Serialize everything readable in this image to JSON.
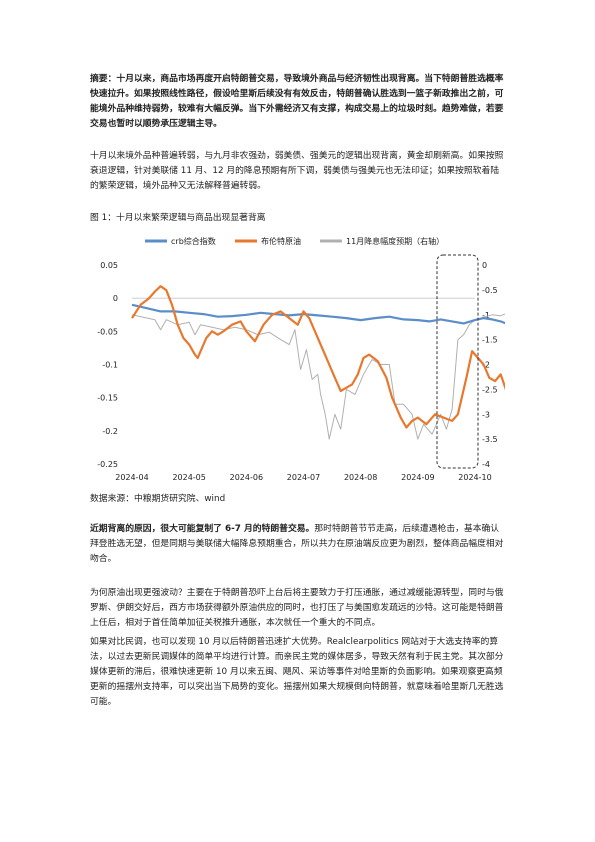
{
  "abstract": "摘要：十月以来，商品市场再度开启特朗普交易，导致境外商品与经济韧性出现背离。当下特朗普胜选概率快速拉升。如果按照线性路径，假设哈里斯后续没有有效反击，特朗普确认胜选到一篮子新政推出之前，可能境外品种维持弱势，较难有大幅反弹。当下外需经济又有支撑，构成交易上的垃圾时刻。趋势难做，若要交易也暂时以顺势承压逻辑主导。",
  "para1": "十月以来境外品种普遍转弱，与九月非农强劲，弱美债、强美元的逻辑出现背离，黄金却刷新高。如果按照衰退逻辑，针对美联储 11 月、12 月的降息预期有所下调，弱美债与强美元也无法印证；如果按照软着陆的繁荣逻辑，境外品种又无法解释普遍转弱。",
  "figure_title": "图 1：十月以来繁荣逻辑与商品出现显著背离",
  "chart_data": {
    "type": "line",
    "title": "",
    "legend_position": "top",
    "x_ticks": [
      "2024-04",
      "2024-05",
      "2024-06",
      "2024-07",
      "2024-08",
      "2024-09",
      "2024-10"
    ],
    "y_left_ticks": [
      "0.05",
      "0",
      "-0.05",
      "-0.1",
      "-0.15",
      "-0.2",
      "-0.25"
    ],
    "y_left_lim": [
      -0.25,
      0.05
    ],
    "y_right_ticks": [
      "0",
      "-0.5",
      "-1",
      "-1.5",
      "-2",
      "-2.5",
      "-3",
      "-3.5",
      "-4"
    ],
    "y_right_lim": [
      -4,
      0
    ],
    "series": [
      {
        "name": "crb综合指数",
        "axis": "left",
        "color": "#5b8ec9",
        "points": [
          [
            0.0,
            -0.01
          ],
          [
            0.25,
            -0.015
          ],
          [
            0.5,
            -0.02
          ],
          [
            0.75,
            -0.02
          ],
          [
            1.0,
            -0.022
          ],
          [
            1.25,
            -0.024
          ],
          [
            1.5,
            -0.028
          ],
          [
            1.75,
            -0.027
          ],
          [
            2.0,
            -0.025
          ],
          [
            2.25,
            -0.022
          ],
          [
            2.5,
            -0.024
          ],
          [
            2.75,
            -0.026
          ],
          [
            3.0,
            -0.024
          ],
          [
            3.25,
            -0.026
          ],
          [
            3.5,
            -0.028
          ],
          [
            3.75,
            -0.03
          ],
          [
            4.0,
            -0.033
          ],
          [
            4.25,
            -0.03
          ],
          [
            4.5,
            -0.028
          ],
          [
            4.75,
            -0.032
          ],
          [
            5.0,
            -0.033
          ],
          [
            5.2,
            -0.035
          ],
          [
            5.4,
            -0.032
          ],
          [
            5.6,
            -0.035
          ],
          [
            5.8,
            -0.038
          ],
          [
            6.0,
            -0.033
          ],
          [
            6.15,
            -0.03
          ],
          [
            6.3,
            -0.032
          ],
          [
            6.45,
            -0.035
          ],
          [
            6.6,
            -0.04
          ]
        ]
      },
      {
        "name": "布伦特原油",
        "axis": "left",
        "color": "#e8782d",
        "points": [
          [
            0.0,
            -0.03
          ],
          [
            0.15,
            -0.01
          ],
          [
            0.3,
            0.0
          ],
          [
            0.4,
            0.01
          ],
          [
            0.5,
            0.018
          ],
          [
            0.6,
            0.012
          ],
          [
            0.7,
            -0.01
          ],
          [
            0.8,
            -0.04
          ],
          [
            0.9,
            -0.06
          ],
          [
            1.0,
            -0.07
          ],
          [
            1.1,
            -0.085
          ],
          [
            1.15,
            -0.09
          ],
          [
            1.2,
            -0.08
          ],
          [
            1.3,
            -0.06
          ],
          [
            1.4,
            -0.05
          ],
          [
            1.5,
            -0.055
          ],
          [
            1.6,
            -0.05
          ],
          [
            1.75,
            -0.04
          ],
          [
            1.9,
            -0.035
          ],
          [
            2.0,
            -0.05
          ],
          [
            2.15,
            -0.065
          ],
          [
            2.3,
            -0.04
          ],
          [
            2.45,
            -0.025
          ],
          [
            2.6,
            -0.02
          ],
          [
            2.75,
            -0.03
          ],
          [
            2.9,
            -0.04
          ],
          [
            3.0,
            -0.02
          ],
          [
            3.1,
            -0.03
          ],
          [
            3.2,
            -0.05
          ],
          [
            3.35,
            -0.08
          ],
          [
            3.45,
            -0.1
          ],
          [
            3.55,
            -0.12
          ],
          [
            3.65,
            -0.14
          ],
          [
            3.75,
            -0.135
          ],
          [
            3.85,
            -0.13
          ],
          [
            3.95,
            -0.115
          ],
          [
            4.05,
            -0.09
          ],
          [
            4.15,
            -0.085
          ],
          [
            4.3,
            -0.095
          ],
          [
            4.45,
            -0.12
          ],
          [
            4.55,
            -0.15
          ],
          [
            4.6,
            -0.16
          ],
          [
            4.7,
            -0.18
          ],
          [
            4.8,
            -0.195
          ],
          [
            4.9,
            -0.185
          ],
          [
            5.0,
            -0.18
          ],
          [
            5.15,
            -0.19
          ],
          [
            5.3,
            -0.175
          ],
          [
            5.45,
            -0.18
          ],
          [
            5.6,
            -0.185
          ],
          [
            5.7,
            -0.175
          ],
          [
            5.85,
            -0.12
          ],
          [
            5.95,
            -0.08
          ],
          [
            6.05,
            -0.09
          ],
          [
            6.15,
            -0.1
          ],
          [
            6.25,
            -0.12
          ],
          [
            6.35,
            -0.125
          ],
          [
            6.45,
            -0.115
          ],
          [
            6.55,
            -0.14
          ],
          [
            6.6,
            -0.155
          ]
        ]
      },
      {
        "name": "11月降息幅度预期（右轴）",
        "axis": "right",
        "color": "#b0b0b0",
        "points": [
          [
            0.0,
            -1.0
          ],
          [
            0.2,
            -1.05
          ],
          [
            0.4,
            -1.1
          ],
          [
            0.5,
            -1.3
          ],
          [
            0.6,
            -1.1
          ],
          [
            0.8,
            -1.2
          ],
          [
            1.0,
            -1.15
          ],
          [
            1.1,
            -1.4
          ],
          [
            1.2,
            -1.2
          ],
          [
            1.4,
            -1.25
          ],
          [
            1.6,
            -1.3
          ],
          [
            1.8,
            -1.25
          ],
          [
            2.0,
            -1.3
          ],
          [
            2.2,
            -1.4
          ],
          [
            2.4,
            -1.35
          ],
          [
            2.6,
            -1.5
          ],
          [
            2.75,
            -1.6
          ],
          [
            2.85,
            -1.3
          ],
          [
            2.95,
            -2.1
          ],
          [
            3.05,
            -1.7
          ],
          [
            3.15,
            -2.3
          ],
          [
            3.25,
            -2.2
          ],
          [
            3.3,
            -2.6
          ],
          [
            3.38,
            -3.0
          ],
          [
            3.45,
            -3.5
          ],
          [
            3.55,
            -3.0
          ],
          [
            3.65,
            -3.3
          ],
          [
            3.75,
            -2.5
          ],
          [
            3.9,
            -2.6
          ],
          [
            4.05,
            -2.2
          ],
          [
            4.2,
            -1.9
          ],
          [
            4.35,
            -2.0
          ],
          [
            4.5,
            -2.0
          ],
          [
            4.6,
            -2.8
          ],
          [
            4.75,
            -2.8
          ],
          [
            4.9,
            -3.0
          ],
          [
            5.0,
            -3.5
          ],
          [
            5.1,
            -3.2
          ],
          [
            5.25,
            -3.4
          ],
          [
            5.4,
            -3.0
          ],
          [
            5.5,
            -3.3
          ],
          [
            5.6,
            -2.9
          ],
          [
            5.7,
            -1.5
          ],
          [
            5.8,
            -1.4
          ],
          [
            5.9,
            -1.2
          ],
          [
            6.0,
            -1.1
          ],
          [
            6.15,
            -1.05
          ],
          [
            6.3,
            -1.0
          ],
          [
            6.45,
            -1.02
          ],
          [
            6.6,
            -0.95
          ]
        ]
      }
    ]
  },
  "source": "数据来源：中粮期货研究院、wind",
  "para2_bold": "近期背离的原因，很大可能复制了 6-7 月的特朗普交易。",
  "para2_rest": "那时特朗普节节走高，后续遭遇枪击，基本确认拜登胜选无望，但是同期与美联储大幅降息预期重合，所以共力在原油端反应更为剧烈，整体商品幅度相对吻合。",
  "para3": "为何原油出现更强波动？主要在于特朗普恐吓上台后将主要致力于打压通胀，通过减缓能源转型，同时与俄罗斯、伊朗交好后，西方市场获得额外原油供应的同时，也打压了与美国愈发疏远的沙特。这可能是特朗普上任后，相对于首任简单加征关税推升通胀，本次就任一个重大的不同点。",
  "para4": "如果对比民调，也可以发现 10 月以后特朗普迅速扩大优势。Realclearpolitics 网站对于大选支持率的算法，以过去更新民调媒体的简单平均进行计算。而亲民主党的媒体居多，导致天然有利于民主党。其次部分媒体更新的滞后，很难快速更新 10 月以来五闽、飓风、采访等事件对哈里斯的负面影响。如果观察更高频更新的摇摆州支持率，可以突出当下局势的变化。摇摆州如果大规模倒向特朗普，就意味着哈里斯几无胜选可能。"
}
